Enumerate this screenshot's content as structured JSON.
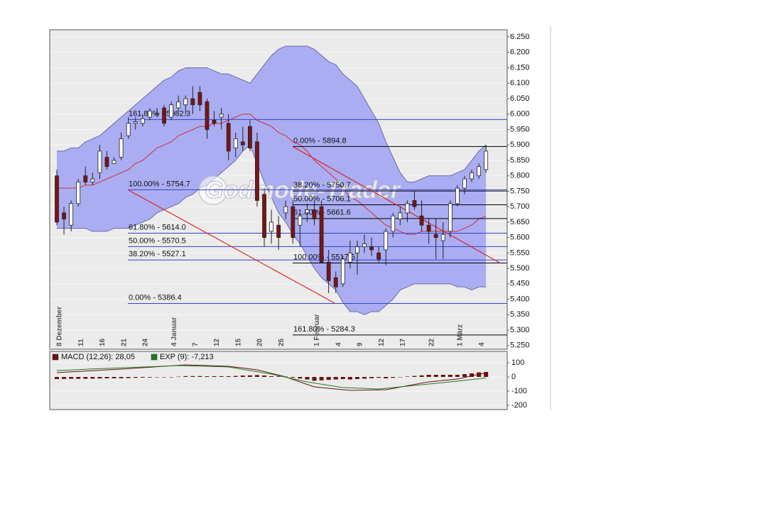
{
  "chart_data": [
    {
      "type": "candlestick",
      "watermark": "Godmode-Trader",
      "categories": [
        "8 Dezember",
        null,
        null,
        "11",
        null,
        null,
        "16",
        null,
        null,
        "21",
        null,
        null,
        "24",
        null,
        null,
        null,
        "4 Januar",
        null,
        null,
        "7",
        null,
        null,
        "12",
        null,
        null,
        "15",
        null,
        null,
        "20",
        null,
        null,
        "25",
        null,
        null,
        null,
        null,
        "1 Februar",
        null,
        null,
        "4",
        null,
        null,
        "9",
        null,
        null,
        "12",
        null,
        null,
        "17",
        null,
        null,
        null,
        "22",
        null,
        null,
        null,
        "1 März",
        null,
        null,
        "4",
        null
      ],
      "open": [
        5800,
        5680,
        5640,
        5710,
        5800,
        5780,
        5810,
        5860,
        5840,
        5860,
        5930,
        5970,
        5970,
        5990,
        6000,
        6020,
        5990,
        6020,
        6030,
        6050,
        6070,
        6040,
        5980,
        5990,
        5970,
        5890,
        5910,
        5960,
        5910,
        5740,
        5620,
        5640,
        5680,
        5700,
        5640,
        5680,
        5690,
        5700,
        5520,
        5470,
        5450,
        5520,
        5550,
        5570,
        5570,
        5550,
        5560,
        5620,
        5660,
        5680,
        5720,
        5670,
        5640,
        5610,
        5590,
        5620,
        5710,
        5760,
        5790,
        5800,
        5820
      ],
      "high": [
        5820,
        5700,
        5720,
        5790,
        5830,
        5810,
        5900,
        5880,
        5860,
        5940,
        5990,
        5990,
        6000,
        6020,
        6020,
        6030,
        6040,
        6060,
        6060,
        6090,
        6090,
        6050,
        6010,
        6020,
        6000,
        5940,
        5960,
        5980,
        5940,
        5760,
        5690,
        5670,
        5720,
        5720,
        5680,
        5710,
        5720,
        5720,
        5560,
        5490,
        5540,
        5590,
        5590,
        5610,
        5600,
        5570,
        5630,
        5680,
        5700,
        5720,
        5750,
        5720,
        5660,
        5660,
        5650,
        5720,
        5770,
        5800,
        5820,
        5840,
        5900
      ],
      "low": [
        5640,
        5610,
        5620,
        5700,
        5770,
        5770,
        5790,
        5820,
        5840,
        5850,
        5920,
        5950,
        5960,
        5980,
        5990,
        5960,
        5980,
        6010,
        6000,
        6000,
        6010,
        5920,
        5960,
        5950,
        5850,
        5860,
        5880,
        5880,
        5700,
        5570,
        5580,
        5560,
        5660,
        5580,
        5570,
        5650,
        5640,
        5520,
        5420,
        5420,
        5440,
        5500,
        5480,
        5550,
        5540,
        5520,
        5510,
        5600,
        5640,
        5650,
        5690,
        5620,
        5580,
        5530,
        5530,
        5600,
        5700,
        5740,
        5780,
        5790,
        5810
      ],
      "close": [
        5650,
        5660,
        5710,
        5780,
        5780,
        5790,
        5880,
        5830,
        5850,
        5920,
        5970,
        5975,
        5985,
        6010,
        6000,
        5970,
        6030,
        6040,
        6050,
        6030,
        6030,
        5950,
        5970,
        6000,
        5880,
        5920,
        5900,
        5890,
        5720,
        5600,
        5650,
        5600,
        5700,
        5600,
        5670,
        5690,
        5660,
        5520,
        5460,
        5440,
        5530,
        5550,
        5570,
        5580,
        5560,
        5530,
        5620,
        5670,
        5680,
        5710,
        5700,
        5640,
        5620,
        5600,
        5610,
        5710,
        5760,
        5790,
        5810,
        5830,
        5880
      ],
      "up_color": "#ffffff",
      "down_color": "#7a1414",
      "bands": {
        "fill": "#a3a6f2",
        "line_color": "#6a6aa8",
        "middle_color": "#d8283a",
        "upper": [
          5880,
          5880,
          5890,
          5890,
          5910,
          5920,
          5930,
          5950,
          5970,
          5990,
          6010,
          6030,
          6050,
          6070,
          6090,
          6110,
          6120,
          6140,
          6150,
          6150,
          6150,
          6150,
          6140,
          6130,
          6130,
          6120,
          6110,
          6100,
          6130,
          6160,
          6190,
          6210,
          6220,
          6220,
          6220,
          6220,
          6210,
          6190,
          6170,
          6160,
          6130,
          6110,
          6090,
          6050,
          6010,
          5970,
          5910,
          5860,
          5810,
          5780,
          5780,
          5790,
          5800,
          5800,
          5800,
          5800,
          5810,
          5820,
          5850,
          5880,
          5900
        ],
        "middle": [
          5760,
          5760,
          5760,
          5760,
          5770,
          5770,
          5780,
          5790,
          5800,
          5810,
          5820,
          5840,
          5850,
          5870,
          5890,
          5900,
          5910,
          5930,
          5940,
          5950,
          5960,
          5960,
          5970,
          5970,
          5980,
          5990,
          6000,
          6000,
          5980,
          5970,
          5960,
          5940,
          5930,
          5910,
          5900,
          5880,
          5850,
          5830,
          5810,
          5790,
          5760,
          5730,
          5720,
          5700,
          5680,
          5660,
          5640,
          5630,
          5620,
          5610,
          5610,
          5620,
          5620,
          5620,
          5620,
          5620,
          5620,
          5630,
          5640,
          5660,
          5670
        ],
        "lower": [
          5630,
          5630,
          5630,
          5630,
          5630,
          5620,
          5620,
          5620,
          5630,
          5630,
          5630,
          5640,
          5650,
          5660,
          5680,
          5690,
          5700,
          5710,
          5730,
          5740,
          5760,
          5770,
          5790,
          5810,
          5830,
          5850,
          5880,
          5900,
          5840,
          5780,
          5730,
          5680,
          5650,
          5610,
          5580,
          5540,
          5500,
          5470,
          5450,
          5430,
          5390,
          5360,
          5360,
          5350,
          5360,
          5360,
          5380,
          5400,
          5430,
          5440,
          5450,
          5450,
          5450,
          5450,
          5450,
          5450,
          5440,
          5440,
          5430,
          5440,
          5440
        ]
      },
      "fib": [
        {
          "color": "#3344cc",
          "levels": [
            {
              "value": 5982.3,
              "label": "161.80% - 5982.3"
            },
            {
              "value": 5754.7,
              "label": "100.00% - 5754.7"
            },
            {
              "value": 5614.0,
              "label": "61.80% - 5614.0"
            },
            {
              "value": 5570.5,
              "label": "50.00% - 5570.5"
            },
            {
              "value": 5527.1,
              "label": "38.20% - 5527.1"
            },
            {
              "value": 5386.4,
              "label": "0.00% - 5386.4"
            }
          ]
        },
        {
          "color": "#000000",
          "levels": [
            {
              "value": 5894.8,
              "label": "0.00% - 5894.8"
            },
            {
              "value": 5750.7,
              "label": "38.20% - 5750.7"
            },
            {
              "value": 5706.1,
              "label": "50.00% - 5706.1"
            },
            {
              "value": 5661.6,
              "label": "61.80% - 5661.6"
            },
            {
              "value": 5517.5,
              "label": "100.00% - 5517.5"
            },
            {
              "value": 5284.3,
              "label": "161.80% - 5284.3"
            }
          ]
        }
      ],
      "trend_color": "#e02424",
      "ylim": [
        5238,
        6273
      ],
      "yticks": [
        {
          "value": 5250,
          "label": "5.250"
        },
        {
          "value": 5300,
          "label": "5.300"
        },
        {
          "value": 5350,
          "label": "5.350"
        },
        {
          "value": 5400,
          "label": "5.400"
        },
        {
          "value": 5450,
          "label": "5.450"
        },
        {
          "value": 5500,
          "label": "5.500"
        },
        {
          "value": 5550,
          "label": "5.550"
        },
        {
          "value": 5600,
          "label": "5.600"
        },
        {
          "value": 5650,
          "label": "5.650"
        },
        {
          "value": 5700,
          "label": "5.700"
        },
        {
          "value": 5750,
          "label": "5.750"
        },
        {
          "value": 5800,
          "label": "5.800"
        },
        {
          "value": 5850,
          "label": "5.850"
        },
        {
          "value": 5900,
          "label": "5.900"
        },
        {
          "value": 5950,
          "label": "5.950"
        },
        {
          "value": 6000,
          "label": "6.000"
        },
        {
          "value": 6050,
          "label": "6.050"
        },
        {
          "value": 6100,
          "label": "6.100"
        },
        {
          "value": 6150,
          "label": "6.150"
        },
        {
          "value": 6200,
          "label": "6.200"
        },
        {
          "value": 6250,
          "label": "6.250"
        }
      ],
      "grid": true
    },
    {
      "type": "macd",
      "series": [
        {
          "name": "MACD (12,26): 28,05",
          "color": "#6b1010",
          "values": [
            30,
            33,
            36,
            38,
            41,
            44,
            47,
            50,
            52,
            55,
            58,
            62,
            65,
            68,
            72,
            75,
            78,
            82,
            85,
            83,
            82,
            80,
            78,
            77,
            75,
            69,
            63,
            56,
            50,
            38,
            25,
            13,
            0,
            -18,
            -35,
            -53,
            -70,
            -75,
            -80,
            -85,
            -90,
            -95,
            -94,
            -93,
            -92,
            -91,
            -90,
            -81,
            -72,
            -62,
            -53,
            -44,
            -35,
            -30,
            -25,
            -20,
            -15,
            -4,
            7,
            19,
            28
          ]
        },
        {
          "name": "EXP (9): -7,213",
          "color": "#1f7a1f",
          "values": [
            45,
            47,
            49,
            51,
            54,
            56,
            58,
            60,
            62,
            64,
            66,
            68,
            70,
            72,
            74,
            76,
            78,
            80,
            79,
            77,
            76,
            75,
            73,
            72,
            70,
            62,
            53,
            45,
            37,
            28,
            20,
            9,
            -2,
            -13,
            -24,
            -35,
            -43,
            -51,
            -59,
            -67,
            -75,
            -77,
            -79,
            -81,
            -83,
            -85,
            -80,
            -75,
            -70,
            -65,
            -60,
            -55,
            -50,
            -45,
            -40,
            -35,
            -30,
            -24,
            -18,
            -13,
            -7
          ]
        }
      ],
      "histogram": {
        "color": "#6b1010",
        "values": [
          -15,
          -14,
          -13,
          -13,
          -13,
          -12,
          -11,
          -10,
          -10,
          -9,
          -8,
          -6,
          -5,
          -4,
          -2,
          -1,
          0,
          2,
          6,
          6,
          6,
          5,
          5,
          5,
          5,
          7,
          10,
          11,
          13,
          10,
          5,
          4,
          2,
          -5,
          -11,
          -18,
          -27,
          -24,
          -21,
          -18,
          -15,
          -18,
          -15,
          -12,
          -9,
          -6,
          -10,
          -6,
          -2,
          3,
          7,
          11,
          15,
          15,
          15,
          15,
          15,
          20,
          25,
          32,
          35
        ]
      },
      "ylim": [
        -230,
        180
      ],
      "yticks": [
        100,
        0,
        -100,
        -200
      ],
      "grid": true
    }
  ]
}
